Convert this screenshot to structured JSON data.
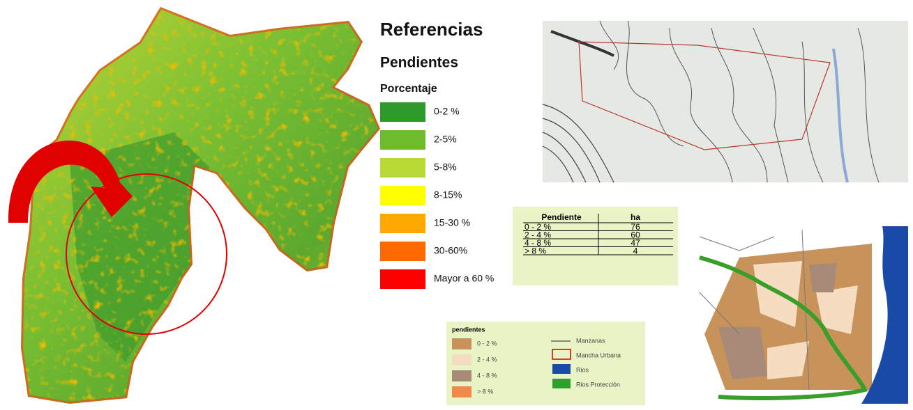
{
  "legend": {
    "title": "Referencias",
    "subtitle": "Pendientes",
    "unit": "Porcentaje",
    "items": [
      {
        "label": "0-2 %",
        "color": "#2f9a2c"
      },
      {
        "label": "2-5%",
        "color": "#6cbc2c"
      },
      {
        "label": "5-8%",
        "color": "#b8d936"
      },
      {
        "label": "8-15%",
        "color": "#ffff00"
      },
      {
        "label": "15-30 %",
        "color": "#ffa800"
      },
      {
        "label": "30-60%",
        "color": "#ff6a00"
      },
      {
        "label": "Mayor a 60 %",
        "color": "#ff0000"
      }
    ]
  },
  "table": {
    "header": [
      "Pendiente",
      "ha"
    ],
    "rows": [
      [
        "0 - 2 %",
        "76"
      ],
      [
        "2 - 4 %",
        "60"
      ],
      [
        "4 - 8 %",
        "47"
      ],
      [
        "> 8 %",
        "4"
      ]
    ]
  },
  "small_legend": {
    "title": "pendientes",
    "items": [
      {
        "label": "0 - 2 %",
        "color": "#c8935a"
      },
      {
        "label": "2 - 4 %",
        "color": "#f6dcc0"
      },
      {
        "label": "4 - 8 %",
        "color": "#a88a78"
      },
      {
        "label": "> 8 %",
        "color": "#f08a4a"
      }
    ],
    "layers": [
      {
        "label": "Manzanas"
      },
      {
        "label": "Mancha Urbana"
      },
      {
        "label": "Rios"
      },
      {
        "label": "Rios Protección"
      }
    ]
  }
}
